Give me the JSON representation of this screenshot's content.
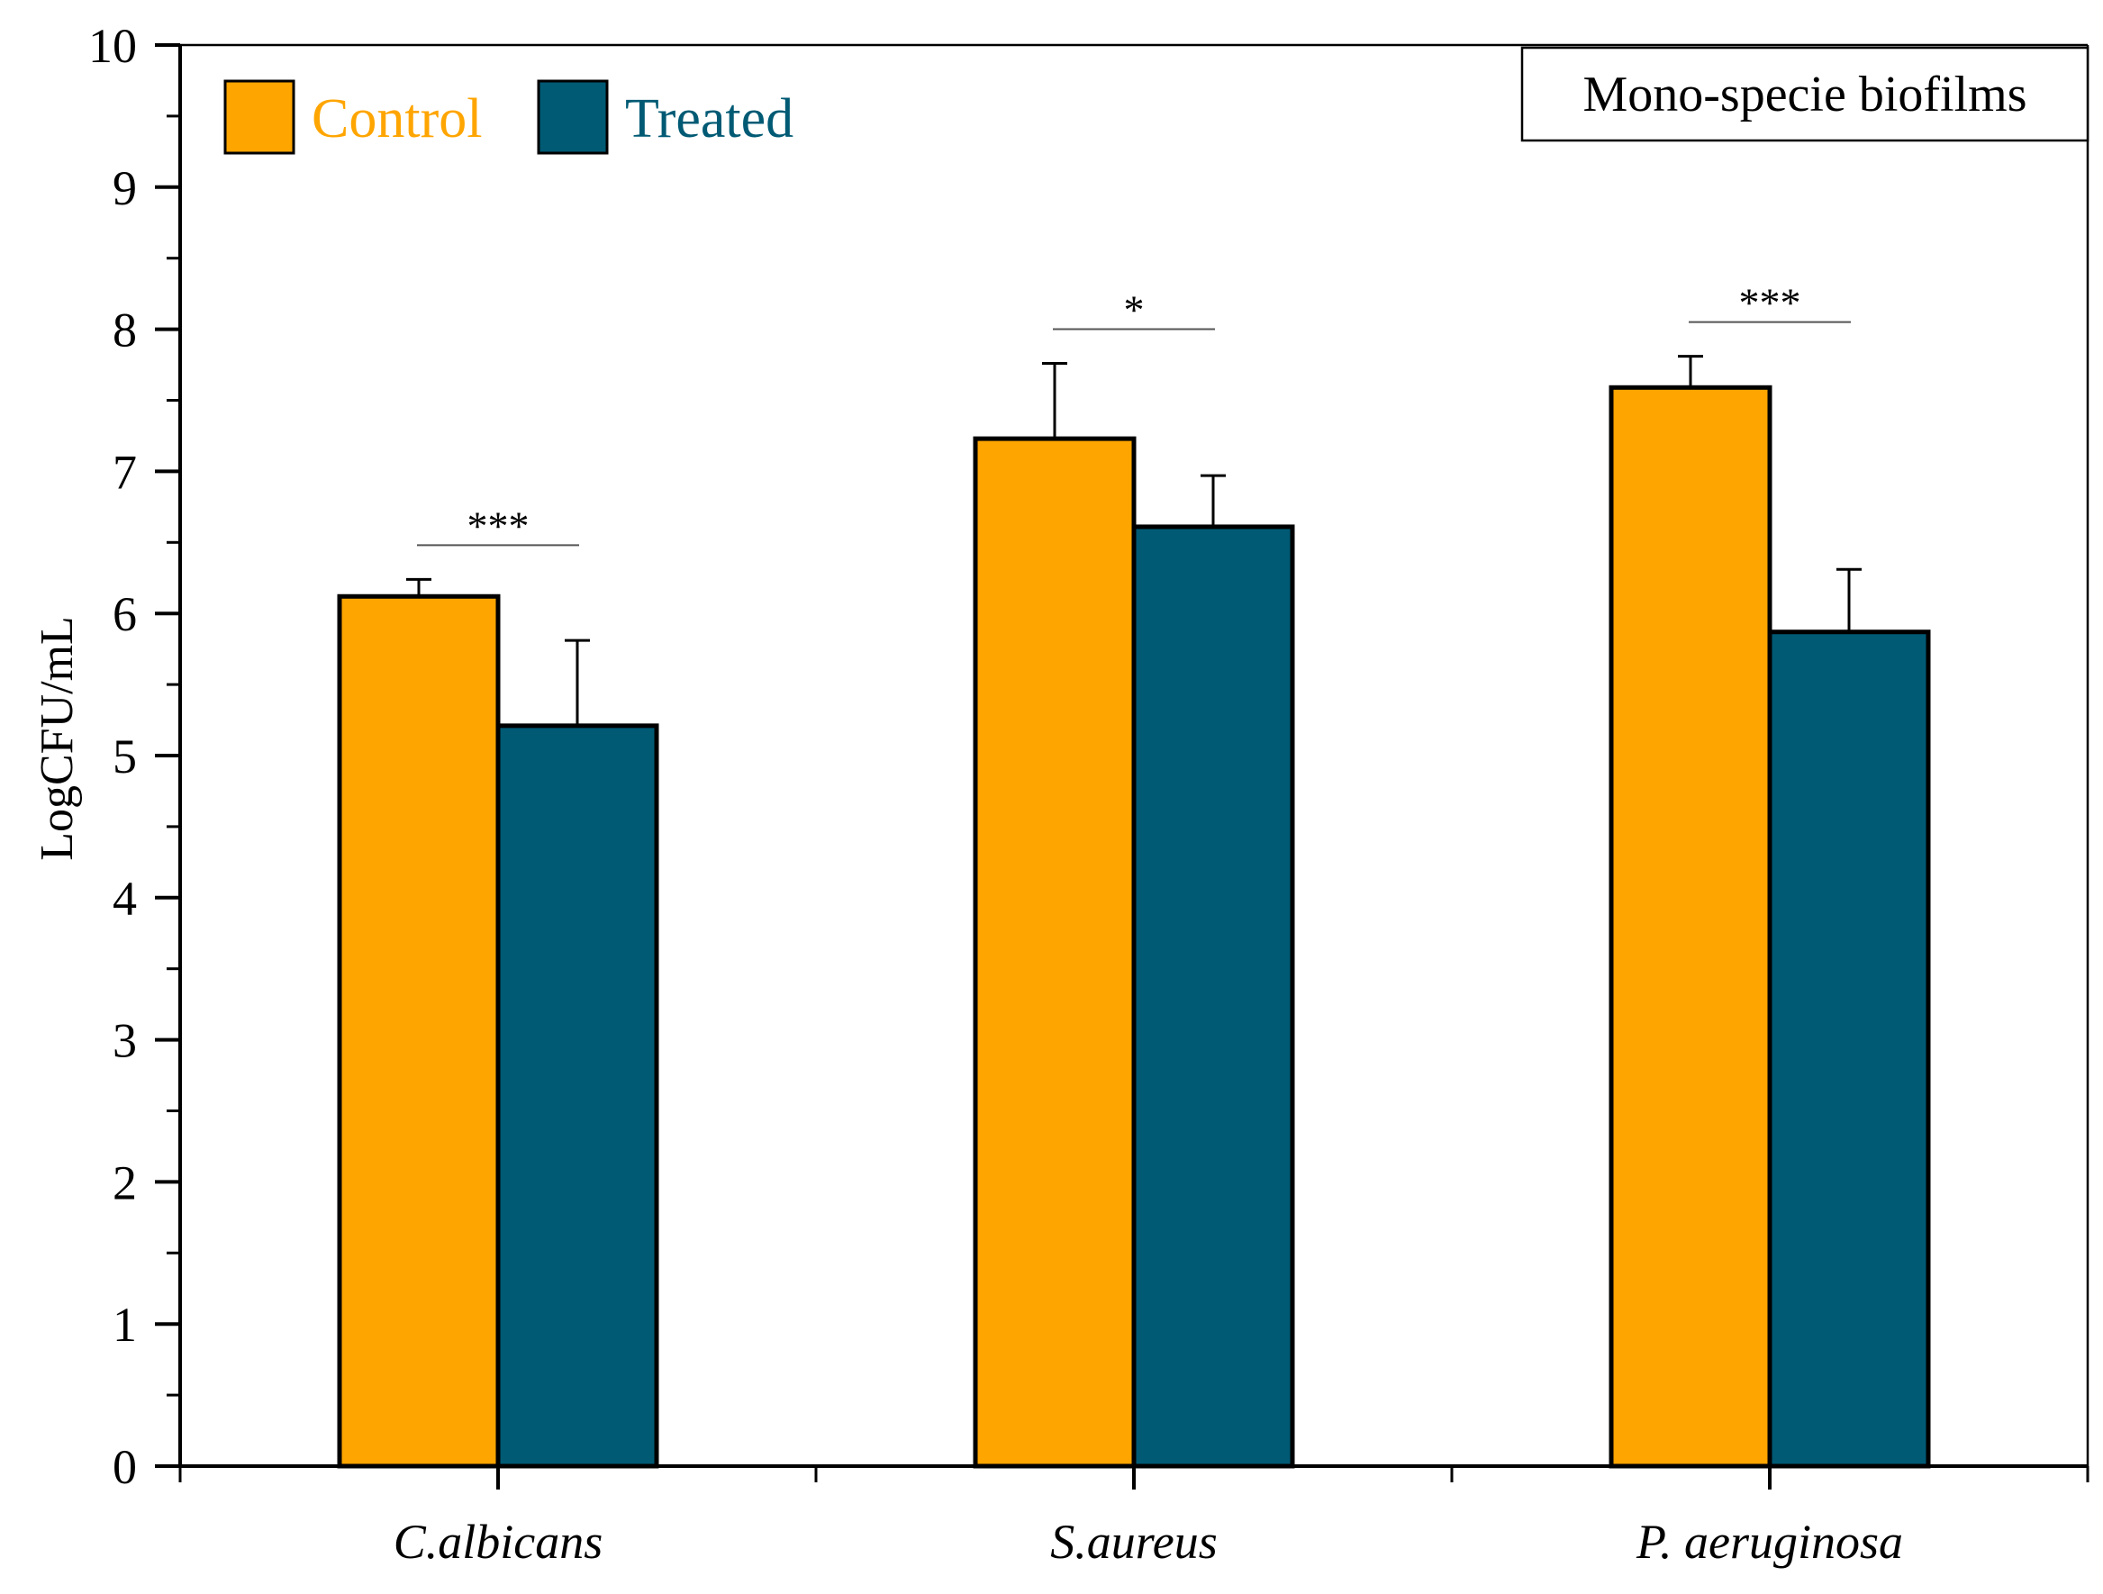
{
  "chart_data": {
    "type": "bar",
    "title": "Mono-specie biofilms",
    "xlabel": "",
    "ylabel": "LogCFU/mL",
    "ylim": [
      0,
      10
    ],
    "yticks": [
      0,
      1,
      2,
      3,
      4,
      5,
      6,
      7,
      8,
      9,
      10
    ],
    "ytick_labels": [
      "0",
      "1",
      "2",
      "3",
      "4",
      "5",
      "6",
      "7",
      "8",
      "9",
      "10"
    ],
    "minor_tick_step": 0.5,
    "grid": false,
    "legend_position": "top-left",
    "categories": [
      "C.albicans",
      "S.aureus",
      "P. aeruginosa"
    ],
    "series": [
      {
        "name": "Control",
        "color": "#FFA500",
        "values": [
          6.12,
          7.23,
          7.59
        ],
        "errors": [
          0.12,
          0.53,
          0.22
        ]
      },
      {
        "name": "Treated",
        "color": "#005A74",
        "values": [
          5.21,
          6.61,
          5.87
        ],
        "errors": [
          0.6,
          0.36,
          0.44
        ]
      }
    ],
    "significance": [
      "***",
      "*",
      "***"
    ]
  }
}
